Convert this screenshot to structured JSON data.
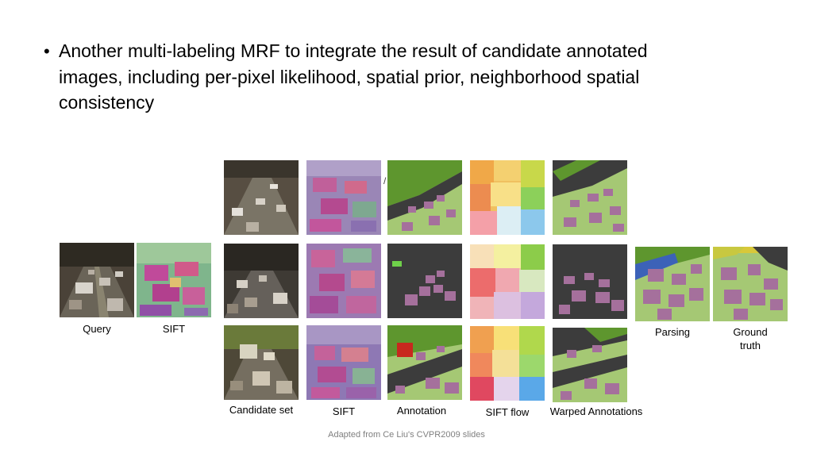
{
  "slide": {
    "bullet": "Another multi-labeling MRF to integrate the result of candidate annotated images, including per-pixel likelihood, spatial prior, neighborhood spatial consistency",
    "captions": {
      "query": "Query",
      "sift_query": "SIFT",
      "parsing": "Parsing",
      "ground_truth_line1": "Ground",
      "ground_truth_line2": "truth",
      "candidate_set": "Candidate set",
      "sift_candidates": "SIFT",
      "annotation": "Annotation",
      "sift_flow": "SIFT flow",
      "warped_annotations": "Warped Annotations"
    },
    "footer": "Adapted from Ce Liu's CVPR2009 slides"
  },
  "palette": {
    "road_dark": "#3c3c3c",
    "ground_green": "#a5c874",
    "car_purple": "#a5709c",
    "tree_green": "#5e962e",
    "sky_blue": "#3c62b8",
    "building_red": "#c8281e"
  }
}
